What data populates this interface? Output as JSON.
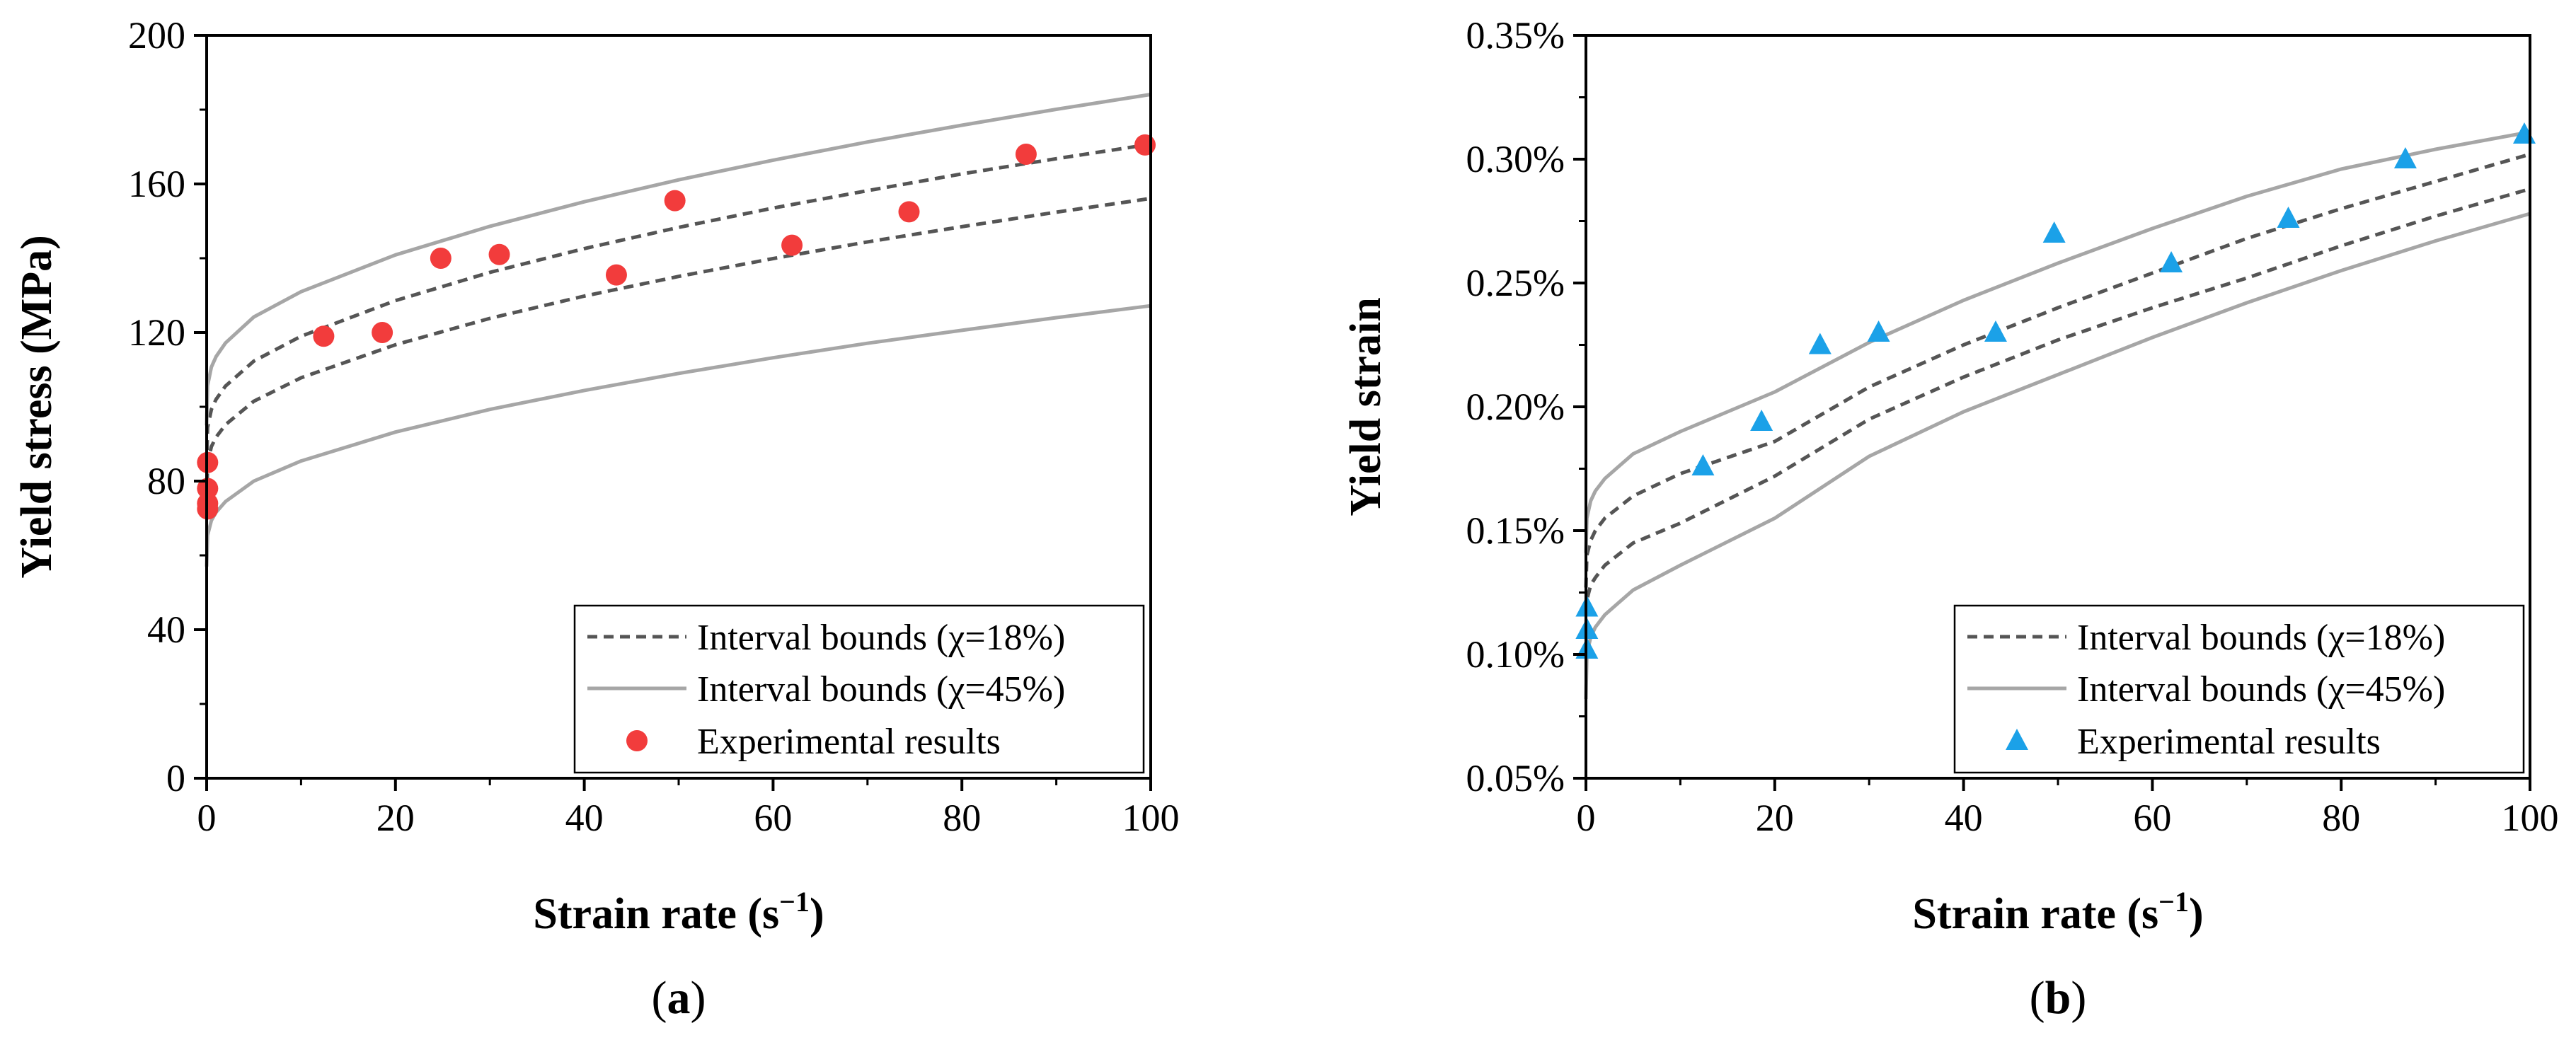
{
  "chart_data": [
    {
      "type": "line",
      "panel_label": "(a)",
      "panel_label_parts": {
        "open": "(",
        "letter": "a",
        "close": ")"
      },
      "xlabel": "Strain rate (s⁻¹)",
      "xlabel_parts": {
        "base": "Strain rate (s",
        "sup": "−1",
        "close": ")"
      },
      "ylabel": "Yield stress (MPa)",
      "xlim": [
        0,
        100
      ],
      "ylim": [
        0,
        200
      ],
      "xticks": [
        0,
        20,
        40,
        60,
        80,
        100
      ],
      "xtick_labels": [
        "0",
        "20",
        "40",
        "60",
        "80",
        "100"
      ],
      "yticks": [
        0,
        40,
        80,
        120,
        160,
        200
      ],
      "ytick_labels": [
        "0",
        "40",
        "80",
        "120",
        "160",
        "200"
      ],
      "legend_position": "bottom-right",
      "legend": [
        {
          "label": "Interval bounds (χ=18%)",
          "style": "dashed",
          "color": "#555555"
        },
        {
          "label": "Interval bounds (χ=45%)",
          "style": "solid",
          "color": "#a6a6a6"
        },
        {
          "label": "Experimental results",
          "style": "marker-circle",
          "color": "#f23c3c"
        }
      ],
      "series": [
        {
          "name": "Interval bounds (χ=18%) upper",
          "style": "dashed",
          "x": [
            0,
            0.1,
            0.5,
            1,
            2,
            5,
            10,
            20,
            30,
            40,
            50,
            60,
            70,
            80,
            90,
            100
          ],
          "values": [
            84,
            94.4,
            99.3,
            102,
            105.6,
            112.3,
            119,
            128.6,
            136.2,
            142.6,
            148.3,
            153.5,
            158.2,
            162.7,
            166.8,
            170.7
          ]
        },
        {
          "name": "Interval bounds (χ=18%) lower",
          "style": "dashed",
          "x": [
            0,
            0.1,
            0.5,
            1,
            2,
            5,
            10,
            20,
            30,
            40,
            50,
            60,
            70,
            80,
            90,
            100
          ],
          "values": [
            75,
            84.7,
            89.3,
            91.8,
            95.2,
            101.5,
            107.8,
            116.7,
            123.8,
            129.8,
            135.1,
            139.9,
            144.4,
            148.5,
            152.4,
            156.1
          ]
        },
        {
          "name": "Interval bounds (χ=45%) upper",
          "style": "solid",
          "x": [
            0,
            0.1,
            0.5,
            1,
            2,
            5,
            10,
            20,
            30,
            40,
            50,
            60,
            70,
            80,
            90,
            100
          ],
          "values": [
            95,
            105.7,
            110.7,
            113.5,
            117.2,
            124.2,
            131,
            140.9,
            148.6,
            155.2,
            161.1,
            166.4,
            171.3,
            175.8,
            180.1,
            184.1
          ]
        },
        {
          "name": "Interval bounds (χ=45%) lower",
          "style": "solid",
          "x": [
            0,
            0.1,
            0.5,
            1,
            2,
            5,
            10,
            20,
            30,
            40,
            50,
            60,
            70,
            80,
            90,
            100
          ],
          "values": [
            57,
            65.4,
            69.4,
            71.6,
            74.5,
            80,
            85.4,
            93.2,
            99.3,
            104.4,
            109,
            113.2,
            117.1,
            120.6,
            124,
            127.2
          ]
        },
        {
          "name": "Experimental results",
          "style": "marker-circle",
          "x": [
            0.1,
            0.1,
            0.1,
            0.1,
            12.4,
            18.6,
            24.8,
            31,
            43.4,
            49.6,
            62,
            74.4,
            86.8,
            99.4
          ],
          "values": [
            85,
            78,
            74,
            72.5,
            119,
            120,
            140,
            141,
            135.5,
            155.5,
            143.5,
            152.5,
            168,
            170.5
          ]
        }
      ]
    },
    {
      "type": "line",
      "panel_label": "(b)",
      "panel_label_parts": {
        "open": "(",
        "letter": "b",
        "close": ")"
      },
      "xlabel": "Strain rate (s⁻¹)",
      "xlabel_parts": {
        "base": "Strain rate (s",
        "sup": "−1",
        "close": ")"
      },
      "ylabel": "Yield strain",
      "xlim": [
        0,
        100
      ],
      "ylim": [
        0.05,
        0.35
      ],
      "xticks": [
        0,
        20,
        40,
        60,
        80,
        100
      ],
      "xtick_labels": [
        "0",
        "20",
        "40",
        "60",
        "80",
        "100"
      ],
      "yticks": [
        0.05,
        0.1,
        0.15,
        0.2,
        0.25,
        0.3,
        0.35
      ],
      "ytick_labels": [
        "0.05%",
        "0.10%",
        "0.15%",
        "0.20%",
        "0.25%",
        "0.30%",
        "0.35%"
      ],
      "legend_position": "bottom-right",
      "legend": [
        {
          "label": "Interval bounds (χ=18%)",
          "style": "dashed",
          "color": "#555555"
        },
        {
          "label": "Interval bounds (χ=45%)",
          "style": "solid",
          "color": "#a6a6a6"
        },
        {
          "label": "Experimental results",
          "style": "marker-triangle",
          "color": "#1ba1e8"
        }
      ],
      "series": [
        {
          "name": "Interval bounds (χ=18%) upper",
          "style": "dashed",
          "x": [
            0,
            0.1,
            0.5,
            1,
            2,
            5,
            10,
            20,
            30,
            40,
            50,
            60,
            70,
            80,
            90,
            100
          ],
          "values": [
            0.127,
            0.14,
            0.146,
            0.15,
            0.155,
            0.164,
            0.173,
            0.186,
            0.208,
            0.225,
            0.24,
            0.254,
            0.268,
            0.28,
            0.291,
            0.302
          ]
        },
        {
          "name": "Interval bounds (χ=18%) lower",
          "style": "dashed",
          "x": [
            0,
            0.1,
            0.5,
            1,
            2,
            5,
            10,
            20,
            30,
            40,
            50,
            60,
            70,
            80,
            90,
            100
          ],
          "values": [
            0.11,
            0.122,
            0.128,
            0.131,
            0.136,
            0.145,
            0.153,
            0.172,
            0.195,
            0.212,
            0.227,
            0.24,
            0.252,
            0.265,
            0.277,
            0.288
          ]
        },
        {
          "name": "Interval bounds (χ=45%) upper",
          "style": "solid",
          "x": [
            0,
            0.1,
            0.5,
            1,
            2,
            5,
            10,
            20,
            30,
            40,
            50,
            60,
            70,
            80,
            90,
            100
          ],
          "values": [
            0.141,
            0.155,
            0.162,
            0.166,
            0.171,
            0.181,
            0.19,
            0.206,
            0.226,
            0.243,
            0.258,
            0.272,
            0.285,
            0.296,
            0.304,
            0.311
          ]
        },
        {
          "name": "Interval bounds (χ=45%) lower",
          "style": "solid",
          "x": [
            0,
            0.1,
            0.5,
            1,
            2,
            5,
            10,
            20,
            30,
            40,
            50,
            60,
            70,
            80,
            90,
            100
          ],
          "values": [
            0.082,
            0.1,
            0.107,
            0.111,
            0.116,
            0.126,
            0.136,
            0.155,
            0.18,
            0.198,
            0.213,
            0.228,
            0.242,
            0.255,
            0.267,
            0.278
          ]
        },
        {
          "name": "Experimental results",
          "style": "marker-triangle",
          "x": [
            0.1,
            0.1,
            0.1,
            12.4,
            18.6,
            24.8,
            31,
            43.4,
            49.6,
            62,
            74.4,
            86.8,
            99.4
          ],
          "values": [
            0.119,
            0.11,
            0.102,
            0.176,
            0.194,
            0.225,
            0.23,
            0.23,
            0.27,
            0.258,
            0.276,
            0.3,
            0.31
          ]
        }
      ]
    }
  ]
}
